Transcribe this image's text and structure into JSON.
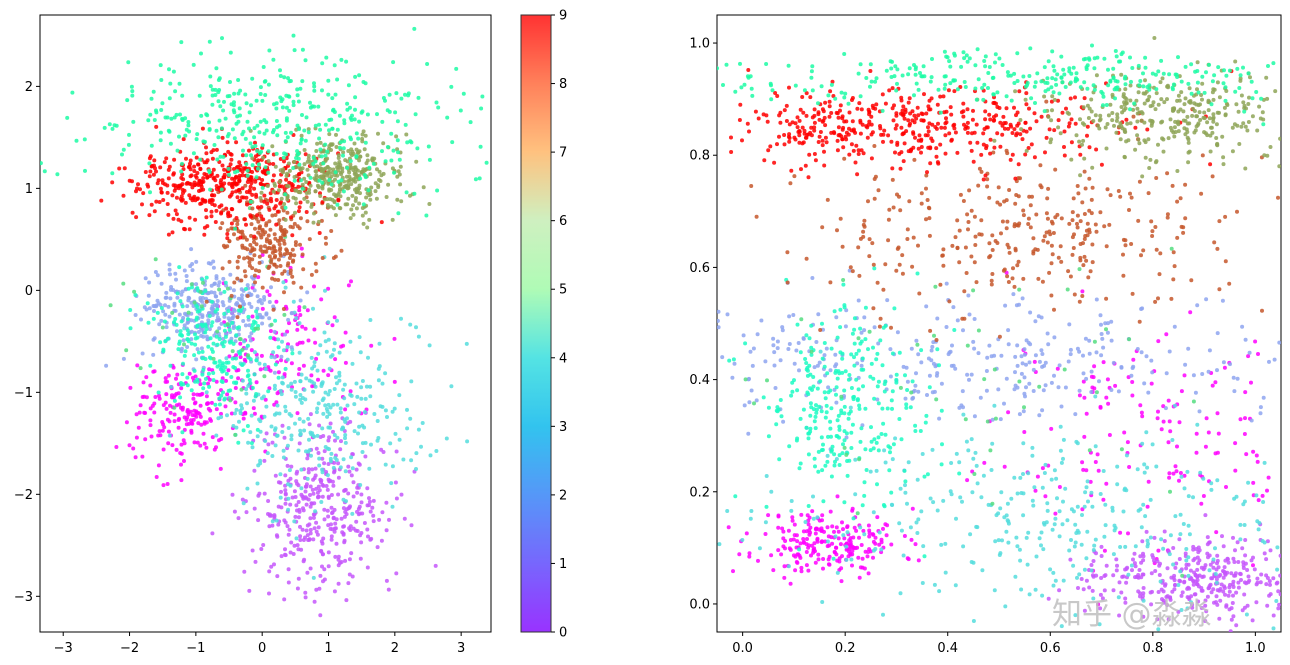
{
  "chart_data": [
    {
      "type": "scatter",
      "title": "",
      "xlabel": "",
      "ylabel": "",
      "xlim": [
        -3.35,
        3.45
      ],
      "ylim": [
        -3.35,
        2.7
      ],
      "xticks": [
        -3,
        -2,
        -1,
        0,
        1,
        2,
        3
      ],
      "yticks": [
        -3,
        -2,
        -1,
        0,
        1,
        2
      ],
      "xtick_labels": [
        "−3",
        "−2",
        "−1",
        "0",
        "1",
        "2",
        "3"
      ],
      "ytick_labels": [
        "−3",
        "−2",
        "−1",
        "0",
        "1",
        "2"
      ],
      "colormap": "rainbow",
      "point_size": 2,
      "clusters": [
        {
          "label": 0,
          "center": [
            -1.2,
            -1.2
          ],
          "spread": [
            0.4,
            0.25
          ],
          "count": 190
        },
        {
          "label": 0,
          "center": [
            0.3,
            -0.6
          ],
          "spread": [
            0.55,
            0.4
          ],
          "count": 140
        },
        {
          "label": 1,
          "center": [
            0.9,
            -2.15
          ],
          "spread": [
            0.55,
            0.4
          ],
          "count": 380
        },
        {
          "label": 3,
          "center": [
            0.9,
            -1.2
          ],
          "spread": [
            0.8,
            0.5
          ],
          "count": 330
        },
        {
          "label": 2,
          "center": [
            -0.8,
            -0.2
          ],
          "spread": [
            0.55,
            0.22
          ],
          "count": 330
        },
        {
          "label": 4,
          "center": [
            -0.8,
            -0.55
          ],
          "spread": [
            0.5,
            0.3
          ],
          "count": 210
        },
        {
          "label": 6,
          "center": [
            -0.6,
            -0.3
          ],
          "spread": [
            0.8,
            0.45
          ],
          "count": 40
        },
        {
          "label": 8,
          "center": [
            0.1,
            0.5
          ],
          "spread": [
            0.4,
            0.25
          ],
          "count": 230
        },
        {
          "label": 9,
          "center": [
            -0.5,
            1.05
          ],
          "spread": [
            0.7,
            0.2
          ],
          "count": 460
        },
        {
          "label": 7,
          "center": [
            1.1,
            1.1
          ],
          "spread": [
            0.5,
            0.2
          ],
          "count": 360
        },
        {
          "label": 5,
          "center": [
            0.2,
            1.65
          ],
          "spread": [
            1.35,
            0.35
          ],
          "count": 420
        }
      ]
    },
    {
      "type": "scatter",
      "title": "",
      "xlabel": "",
      "ylabel": "",
      "xlim": [
        -0.05,
        1.05
      ],
      "ylim": [
        -0.05,
        1.05
      ],
      "xticks": [
        0.0,
        0.2,
        0.4,
        0.6,
        0.8,
        1.0
      ],
      "yticks": [
        0.0,
        0.2,
        0.4,
        0.6,
        0.8,
        1.0
      ],
      "xtick_labels": [
        "0.0",
        "0.2",
        "0.4",
        "0.6",
        "0.8",
        "1.0"
      ],
      "ytick_labels": [
        "0.0",
        "0.2",
        "0.4",
        "0.6",
        "0.8",
        "1.0"
      ],
      "colormap": "rainbow",
      "point_size": 2,
      "clusters": [
        {
          "label": 0,
          "center": [
            0.17,
            0.11
          ],
          "spread": [
            0.07,
            0.03
          ],
          "count": 220
        },
        {
          "label": 0,
          "center": [
            0.8,
            0.3
          ],
          "spread": [
            0.16,
            0.1
          ],
          "count": 160
        },
        {
          "label": 1,
          "center": [
            0.88,
            0.05
          ],
          "spread": [
            0.1,
            0.035
          ],
          "count": 360
        },
        {
          "label": 3,
          "center": [
            0.6,
            0.15
          ],
          "spread": [
            0.28,
            0.08
          ],
          "count": 350
        },
        {
          "label": 2,
          "center": [
            0.45,
            0.43
          ],
          "spread": [
            0.32,
            0.06
          ],
          "count": 360
        },
        {
          "label": 4,
          "center": [
            0.2,
            0.35
          ],
          "spread": [
            0.08,
            0.09
          ],
          "count": 280
        },
        {
          "label": 6,
          "center": [
            0.4,
            0.4
          ],
          "spread": [
            0.3,
            0.12
          ],
          "count": 50
        },
        {
          "label": 8,
          "center": [
            0.55,
            0.66
          ],
          "spread": [
            0.2,
            0.07
          ],
          "count": 330
        },
        {
          "label": 9,
          "center": [
            0.32,
            0.85
          ],
          "spread": [
            0.22,
            0.035
          ],
          "count": 480
        },
        {
          "label": 7,
          "center": [
            0.83,
            0.87
          ],
          "spread": [
            0.12,
            0.04
          ],
          "count": 330
        },
        {
          "label": 5,
          "center": [
            0.55,
            0.94
          ],
          "spread": [
            0.3,
            0.025
          ],
          "count": 320
        }
      ]
    }
  ],
  "colorbar": {
    "ticks": [
      0,
      1,
      2,
      3,
      4,
      5,
      6,
      7,
      8,
      9
    ],
    "tick_labels": [
      "0",
      "1",
      "2",
      "3",
      "4",
      "5",
      "6",
      "7",
      "8",
      "9"
    ],
    "range": [
      0,
      9
    ],
    "colormap": "rainbow"
  },
  "watermark": "知乎 @淼淼"
}
